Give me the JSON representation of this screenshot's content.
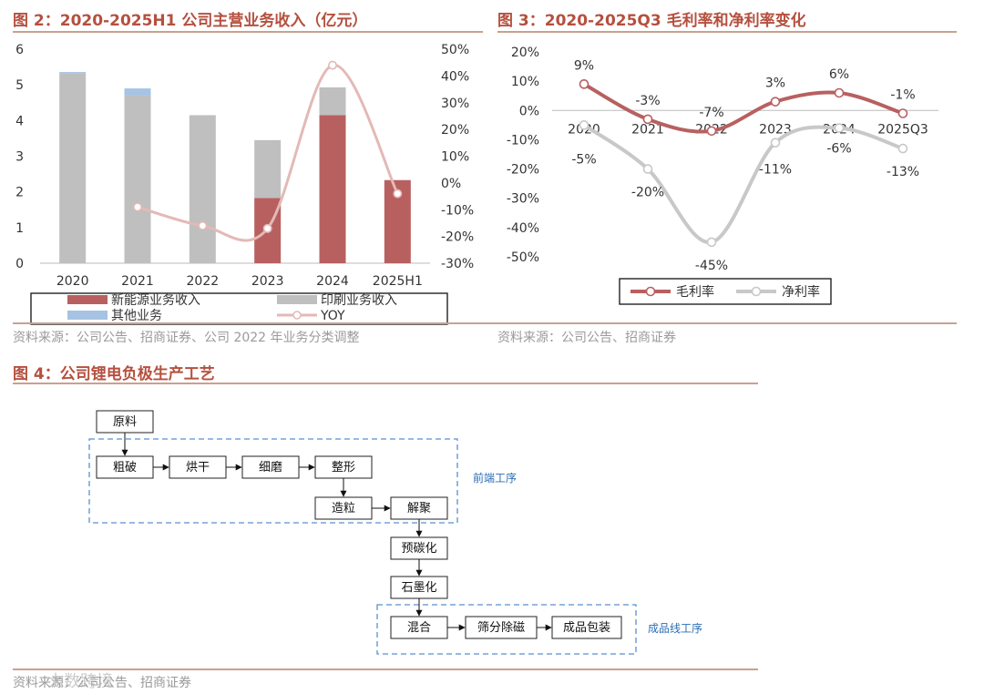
{
  "titles": {
    "fig2": "图 2：2020-2025H1 公司主营业务收入（亿元）",
    "fig3": "图 3：2020-2025Q3 毛利率和净利率变化",
    "fig4": "图 4：公司锂电负极生产工艺"
  },
  "sources": {
    "fig2": "资料来源：公司公告、招商证券、公司 2022 年业务分类调整",
    "fig3": "资料来源：公司公告、招商证券",
    "fig4": "资料来源：公司公告、招商证券"
  },
  "watermark": "大数跨境",
  "colors": {
    "title": "#b5503f",
    "new_energy": "#b86060",
    "printing": "#bfbfbf",
    "other": "#a7c3e3",
    "yoy": "#e3b9b6",
    "gross": "#b86060",
    "net": "#c8c8c8",
    "stage_border": "#5b8fd0"
  },
  "chart_data": [
    {
      "type": "bar",
      "stacked": true,
      "categories": [
        "2020",
        "2021",
        "2022",
        "2023",
        "2024",
        "2025H1"
      ],
      "series": [
        {
          "name": "新能源业务收入",
          "values": [
            0,
            0,
            0,
            1.83,
            4.15,
            2.33
          ],
          "color": "#b86060"
        },
        {
          "name": "印刷业务收入",
          "values": [
            5.33,
            4.7,
            4.15,
            1.62,
            0.78,
            0
          ],
          "color": "#bfbfbf"
        },
        {
          "name": "其他业务",
          "values": [
            0.03,
            0.2,
            0,
            0,
            0,
            0
          ],
          "color": "#a7c3e3"
        }
      ],
      "line_series": {
        "name": "YOY",
        "values": [
          null,
          -0.09,
          -0.16,
          -0.17,
          0.44,
          -0.04
        ],
        "color": "#e3b9b6"
      },
      "ylim": [
        0,
        6
      ],
      "yticks": [
        "0",
        "1",
        "2",
        "3",
        "4",
        "5",
        "6"
      ],
      "y2lim": [
        -0.3,
        0.5
      ],
      "y2ticks": [
        "-30%",
        "-20%",
        "-10%",
        "0%",
        "10%",
        "20%",
        "30%",
        "40%",
        "50%"
      ],
      "legend": "bottom",
      "grid": false
    },
    {
      "type": "line",
      "categories": [
        "2020",
        "2021",
        "2022",
        "2023",
        "2024",
        "2025Q3"
      ],
      "series": [
        {
          "name": "毛利率",
          "values": [
            0.09,
            -0.03,
            -0.07,
            0.03,
            0.06,
            -0.01
          ],
          "labels": [
            "9%",
            "-3%",
            "-7%",
            "3%",
            "6%",
            "-1%"
          ],
          "color": "#b86060"
        },
        {
          "name": "净利率",
          "values": [
            -0.05,
            -0.2,
            -0.45,
            -0.11,
            -0.06,
            -0.13
          ],
          "labels": [
            "-5%",
            "-20%",
            "-45%",
            "-11%",
            "-6%",
            "-13%"
          ],
          "color": "#c8c8c8"
        }
      ],
      "ylim": [
        -0.5,
        0.2
      ],
      "yticks": [
        "-50%",
        "-40%",
        "-30%",
        "-20%",
        "-10%",
        "0%",
        "10%",
        "20%"
      ],
      "legend": "bottom",
      "grid": false
    }
  ],
  "process": {
    "raw": "原料",
    "steps": [
      "粗破",
      "烘干",
      "细磨",
      "整形",
      "造粒",
      "解聚",
      "预碳化",
      "石墨化",
      "混合",
      "筛分除磁",
      "成品包装"
    ],
    "stage_front": "前端工序",
    "stage_finish": "成品线工序"
  }
}
